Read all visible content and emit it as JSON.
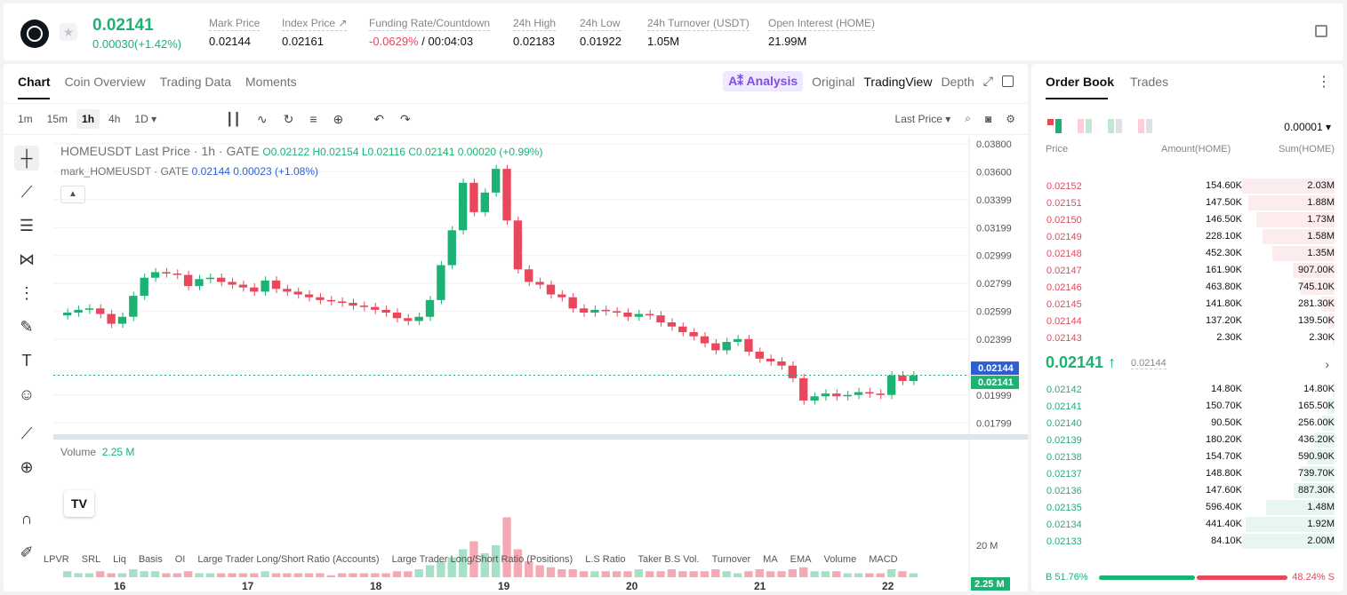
{
  "header": {
    "last_price": "0.02141",
    "change": "0.00030(+1.42%)",
    "stats": [
      {
        "label": "Mark Price",
        "value": "0.02144"
      },
      {
        "label": "Index Price ↗",
        "value": "0.02161"
      },
      {
        "label": "Funding Rate/Countdown",
        "value_neg": "-0.0629%",
        "value": " / 00:04:03"
      },
      {
        "label": "24h High",
        "value": "0.02183"
      },
      {
        "label": "24h Low",
        "value": "0.01922"
      },
      {
        "label": "24h Turnover (USDT)",
        "value": "1.05M"
      },
      {
        "label": "Open Interest (HOME)",
        "value": "21.99M"
      }
    ]
  },
  "chart_tabs": {
    "left": [
      "Chart",
      "Coin Overview",
      "Trading Data",
      "Moments"
    ],
    "ai": "A⁑ Analysis",
    "original": "Original",
    "tradingview": "TradingView",
    "depth": "Depth"
  },
  "toolbar": {
    "intervals": [
      "1m",
      "15m",
      "1h",
      "4h",
      "1D ▾"
    ],
    "price_type": "Last Price ▾"
  },
  "legend": {
    "title": "HOMEUSDT Last Price · 1h · GATE",
    "ohlc": "O0.02122  H0.02154  L0.02116  C0.02141  0.00020 (+0.99%)",
    "mark_name": "mark_HOMEUSDT · GATE",
    "mark_vals": "0.02144  0.00023  (+1.08%)",
    "volume_label": "Volume",
    "volume_val": "2.25 M"
  },
  "chart_data": {
    "type": "candlestick",
    "y_axis_ticks": [
      "0.03800",
      "0.03600",
      "0.03399",
      "0.03199",
      "0.02999",
      "0.02799",
      "0.02599",
      "0.02399",
      "0.01999",
      "0.01799"
    ],
    "ylim": [
      0.0175,
      0.0385
    ],
    "x_ticks": [
      "16",
      "17",
      "18",
      "19",
      "20",
      "21",
      "22"
    ],
    "volume_ticks": [
      "20 M"
    ],
    "mark_price_label": "0.02144",
    "last_price_label": "0.02141",
    "last_volume_label": "2.25 M",
    "close_series": [
      0.0259,
      0.0261,
      0.0262,
      0.0258,
      0.0251,
      0.0256,
      0.0271,
      0.0284,
      0.0288,
      0.0287,
      0.0286,
      0.0278,
      0.0283,
      0.0284,
      0.0281,
      0.0279,
      0.0277,
      0.0274,
      0.0282,
      0.0276,
      0.0274,
      0.0272,
      0.027,
      0.0268,
      0.0267,
      0.0266,
      0.0264,
      0.0263,
      0.0261,
      0.0259,
      0.0255,
      0.0253,
      0.0256,
      0.0268,
      0.0293,
      0.0318,
      0.0352,
      0.0331,
      0.0345,
      0.0362,
      0.0325,
      0.029,
      0.0281,
      0.0279,
      0.0272,
      0.027,
      0.0262,
      0.0259,
      0.0261,
      0.026,
      0.0259,
      0.0256,
      0.0258,
      0.0257,
      0.0252,
      0.0249,
      0.0245,
      0.0242,
      0.0237,
      0.0232,
      0.0238,
      0.024,
      0.0231,
      0.0226,
      0.0224,
      0.0221,
      0.0212,
      0.0196,
      0.0199,
      0.0201,
      0.0199,
      0.02,
      0.0202,
      0.0201,
      0.02,
      0.0214,
      0.021,
      0.0214
    ],
    "volume_series": [
      3,
      2,
      2,
      3,
      2,
      2,
      4,
      3,
      3,
      2,
      2,
      3,
      2,
      2,
      2,
      2,
      2,
      2,
      3,
      2,
      2,
      2,
      2,
      2,
      1,
      2,
      2,
      2,
      2,
      2,
      3,
      3,
      4,
      6,
      8,
      10,
      14,
      18,
      12,
      16,
      30,
      14,
      8,
      6,
      5,
      4,
      4,
      3,
      3,
      3,
      3,
      3,
      4,
      3,
      3,
      4,
      3,
      3,
      3,
      4,
      3,
      2,
      3,
      4,
      3,
      3,
      4,
      5,
      3,
      3,
      3,
      2,
      2,
      2,
      2,
      4,
      3,
      2
    ]
  },
  "tools": [
    "crosshair-icon",
    "trendline-icon",
    "parallel-lines-icon",
    "pattern-icon",
    "fib-icon",
    "brush-icon",
    "text-icon",
    "emoji-icon",
    "ruler-icon",
    "zoom-icon",
    "magnet-icon",
    "pencil-icon"
  ],
  "indicators": [
    "LPVR",
    "SRL",
    "Liq",
    "Basis",
    "OI",
    "Large Trader Long/Short Ratio (Accounts)",
    "Large Trader Long/Short Ratio (Positions)",
    "L.S Ratio",
    "Taker B.S Vol.",
    "Turnover",
    "MA",
    "EMA",
    "Volume",
    "MACD"
  ],
  "orderbook": {
    "tabs": [
      "Order Book",
      "Trades"
    ],
    "precision": "0.00001 ▾",
    "headers": {
      "price": "Price",
      "amount": "Amount(HOME)",
      "sum": "Sum(HOME)"
    },
    "asks": [
      {
        "p": "0.02152",
        "a": "154.60K",
        "s": "2.03M",
        "w": 1.0
      },
      {
        "p": "0.02151",
        "a": "147.50K",
        "s": "1.88M",
        "w": 0.93
      },
      {
        "p": "0.02150",
        "a": "146.50K",
        "s": "1.73M",
        "w": 0.85
      },
      {
        "p": "0.02149",
        "a": "228.10K",
        "s": "1.58M",
        "w": 0.78
      },
      {
        "p": "0.02148",
        "a": "452.30K",
        "s": "1.35M",
        "w": 0.67
      },
      {
        "p": "0.02147",
        "a": "161.90K",
        "s": "907.00K",
        "w": 0.45
      },
      {
        "p": "0.02146",
        "a": "463.80K",
        "s": "745.10K",
        "w": 0.37
      },
      {
        "p": "0.02145",
        "a": "141.80K",
        "s": "281.30K",
        "w": 0.14
      },
      {
        "p": "0.02144",
        "a": "137.20K",
        "s": "139.50K",
        "w": 0.07
      },
      {
        "p": "0.02143",
        "a": "2.30K",
        "s": "2.30K",
        "w": 0.005
      }
    ],
    "mid_price": "0.02141 ↑",
    "mid_mark": "0.02144",
    "bids": [
      {
        "p": "0.02142",
        "a": "14.80K",
        "s": "14.80K",
        "w": 0.007
      },
      {
        "p": "0.02141",
        "a": "150.70K",
        "s": "165.50K",
        "w": 0.08
      },
      {
        "p": "0.02140",
        "a": "90.50K",
        "s": "256.00K",
        "w": 0.13
      },
      {
        "p": "0.02139",
        "a": "180.20K",
        "s": "436.20K",
        "w": 0.22
      },
      {
        "p": "0.02138",
        "a": "154.70K",
        "s": "590.90K",
        "w": 0.3
      },
      {
        "p": "0.02137",
        "a": "148.80K",
        "s": "739.70K",
        "w": 0.37
      },
      {
        "p": "0.02136",
        "a": "147.60K",
        "s": "887.30K",
        "w": 0.44
      },
      {
        "p": "0.02135",
        "a": "596.40K",
        "s": "1.48M",
        "w": 0.74
      },
      {
        "p": "0.02134",
        "a": "441.40K",
        "s": "1.92M",
        "w": 0.96
      },
      {
        "p": "0.02133",
        "a": "84.10K",
        "s": "2.00M",
        "w": 1.0
      }
    ],
    "buy_ratio": "B 51.76%",
    "sell_ratio": "48.24% S",
    "buy_frac": 0.5176
  },
  "colors": {
    "up": "#1bb273",
    "down": "#e8475c",
    "accent": "#2c5fd6"
  }
}
